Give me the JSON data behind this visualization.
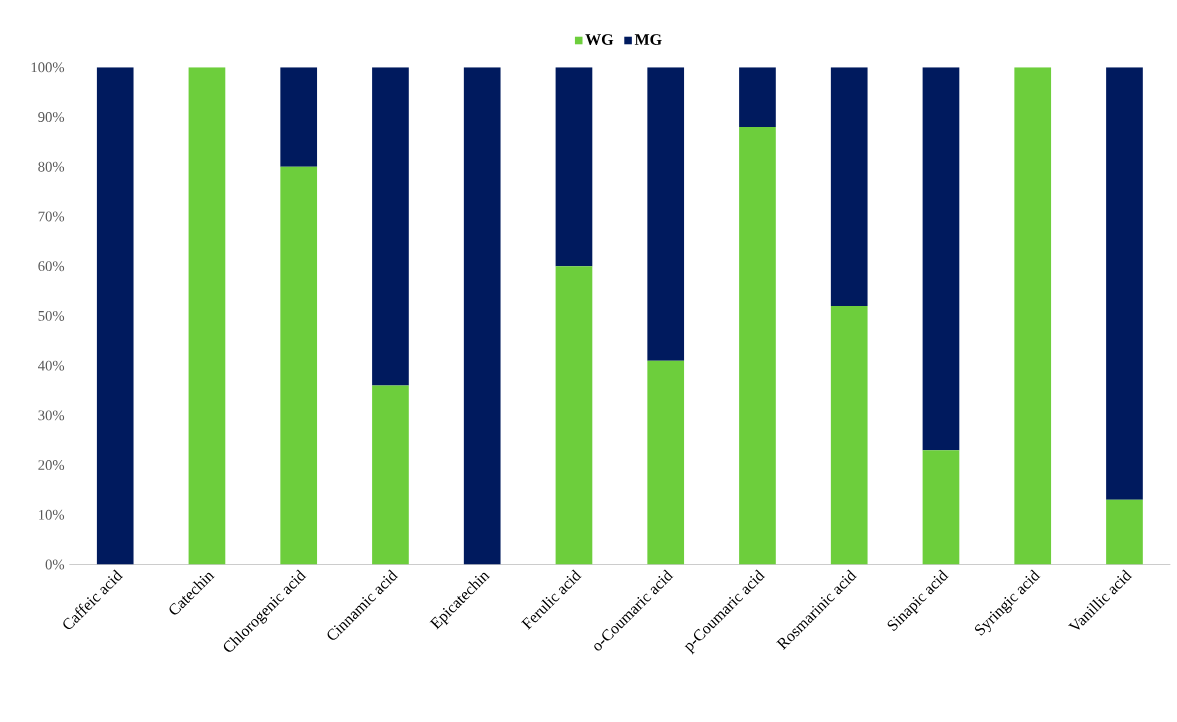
{
  "chart_data": {
    "type": "bar",
    "stacked": true,
    "legend": "top",
    "categories": [
      "Caffeic acid",
      "Catechin",
      "Chlorogenic acid",
      "Cinnamic acid",
      "Epicatechin",
      "Ferulic acid",
      "o-Coumaric acid",
      "p-Coumaric acid",
      "Rosmarinic acid",
      "Sinapic acid",
      "Syringic acid",
      "Vanillic acid"
    ],
    "series": [
      {
        "name": "WG",
        "color": "#6dce3c",
        "values": [
          0,
          100,
          80,
          36,
          0,
          60,
          41,
          88,
          52,
          23,
          100,
          13
        ]
      },
      {
        "name": "MG",
        "color": "#001a5e",
        "values": [
          100,
          0,
          20,
          64,
          100,
          40,
          59,
          12,
          48,
          77,
          0,
          87
        ]
      }
    ],
    "ylim": [
      0,
      100
    ],
    "yticks": [
      {
        "value": 0,
        "label": "0%"
      },
      {
        "value": 10,
        "label": "10%"
      },
      {
        "value": 20,
        "label": "20%"
      },
      {
        "value": 30,
        "label": "30%"
      },
      {
        "value": 40,
        "label": "40%"
      },
      {
        "value": 50,
        "label": "50%"
      },
      {
        "value": 60,
        "label": "60%"
      },
      {
        "value": 70,
        "label": "70%"
      },
      {
        "value": 80,
        "label": "80%"
      },
      {
        "value": 90,
        "label": "90%"
      },
      {
        "value": 100,
        "label": "100%"
      }
    ]
  }
}
